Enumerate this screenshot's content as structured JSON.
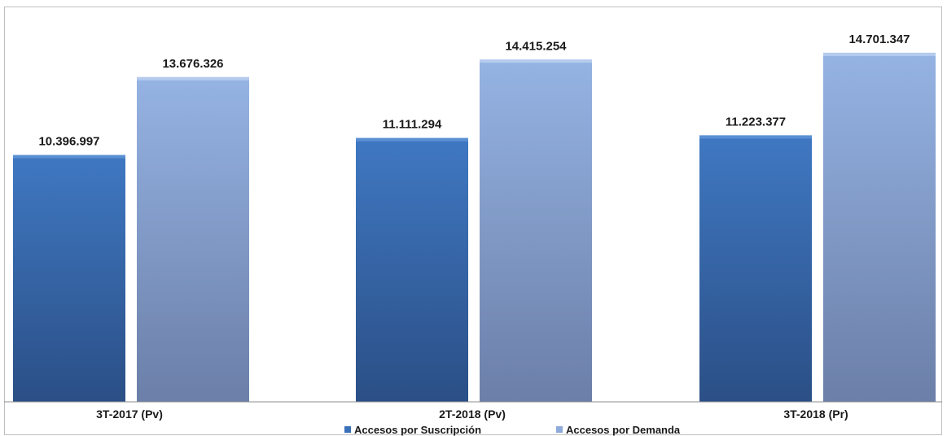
{
  "chart_data": {
    "type": "bar",
    "categories": [
      "3T-2017 (Pv)",
      "2T-2018 (Pv)",
      "3T-2018 (Pr)"
    ],
    "series": [
      {
        "name": "Accesos por Suscripción",
        "values": [
          10396997,
          11111294,
          11223377
        ],
        "labels": [
          "10.396.997",
          "11.111.294",
          "11.223.377"
        ],
        "color": "#3a70b8"
      },
      {
        "name": "Accesos por Demanda",
        "values": [
          13676326,
          14415254,
          14701347
        ],
        "labels": [
          "13.676.326",
          "14.415.254",
          "14.701.347"
        ],
        "color": "#8eaadb"
      }
    ],
    "ylim": [
      0,
      16000000
    ],
    "grid": false,
    "legend_position": "bottom"
  }
}
